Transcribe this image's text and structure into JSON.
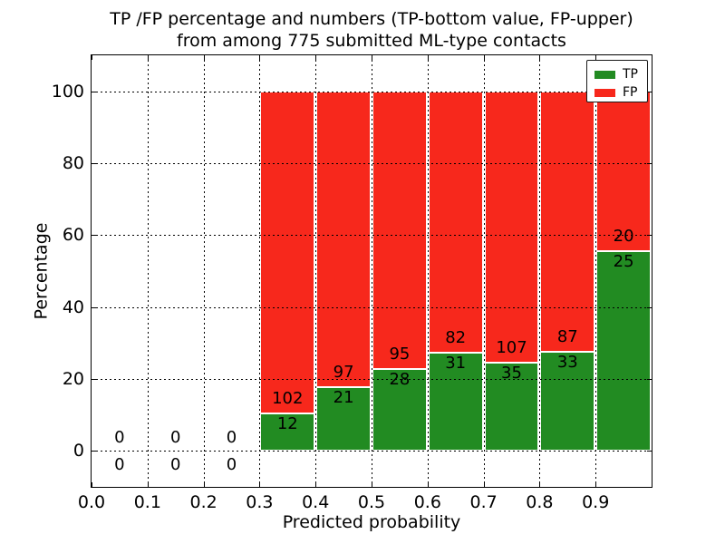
{
  "window": {
    "title_line1": "TP /FP percentage and numbers (TP-bottom value, FP-upper)",
    "title_line2": "from among 775 submitted ML-type contacts"
  },
  "axis": {
    "xlabel": "Predicted probability",
    "ylabel": "Percentage"
  },
  "legend": {
    "items": [
      {
        "label": "TP",
        "color": "#228b22"
      },
      {
        "label": "FP",
        "color": "#f7281c"
      }
    ]
  },
  "chart_data": {
    "type": "bar",
    "stacked": true,
    "normalized_to_percent": true,
    "title": "TP /FP percentage and numbers (TP-bottom value, FP-upper)\nfrom among 775 submitted ML-type contacts",
    "xlabel": "Predicted probability",
    "ylabel": "Percentage",
    "xlim": [
      0.0,
      1.0
    ],
    "ylim": [
      -10,
      110
    ],
    "x_ticks": [
      {
        "value": 0.0,
        "label": "0.0"
      },
      {
        "value": 0.1,
        "label": "0.1"
      },
      {
        "value": 0.2,
        "label": "0.2"
      },
      {
        "value": 0.3,
        "label": "0.3"
      },
      {
        "value": 0.4,
        "label": "0.4"
      },
      {
        "value": 0.5,
        "label": "0.5"
      },
      {
        "value": 0.6,
        "label": "0.6"
      },
      {
        "value": 0.7,
        "label": "0.7"
      },
      {
        "value": 0.8,
        "label": "0.8"
      },
      {
        "value": 0.9,
        "label": "0.9"
      }
    ],
    "y_ticks": [
      0,
      20,
      40,
      60,
      80,
      100
    ],
    "grid": "dotted",
    "legend_position": "upper right",
    "total_submitted": 775,
    "series": [
      {
        "name": "TP",
        "color": "#228b22"
      },
      {
        "name": "FP",
        "color": "#f7281c"
      }
    ],
    "bins": [
      {
        "x0": 0.0,
        "x1": 0.1,
        "tp_count": 0,
        "fp_count": 0,
        "tp_percent": 0,
        "fp_percent": 0
      },
      {
        "x0": 0.1,
        "x1": 0.2,
        "tp_count": 0,
        "fp_count": 0,
        "tp_percent": 0,
        "fp_percent": 0
      },
      {
        "x0": 0.2,
        "x1": 0.3,
        "tp_count": 0,
        "fp_count": 0,
        "tp_percent": 0,
        "fp_percent": 0
      },
      {
        "x0": 0.3,
        "x1": 0.4,
        "tp_count": 12,
        "fp_count": 102,
        "tp_percent": 10.53,
        "fp_percent": 89.47
      },
      {
        "x0": 0.4,
        "x1": 0.5,
        "tp_count": 21,
        "fp_count": 97,
        "tp_percent": 17.8,
        "fp_percent": 82.2
      },
      {
        "x0": 0.5,
        "x1": 0.6,
        "tp_count": 28,
        "fp_count": 95,
        "tp_percent": 22.76,
        "fp_percent": 77.24
      },
      {
        "x0": 0.6,
        "x1": 0.7,
        "tp_count": 31,
        "fp_count": 82,
        "tp_percent": 27.43,
        "fp_percent": 72.57
      },
      {
        "x0": 0.7,
        "x1": 0.8,
        "tp_count": 35,
        "fp_count": 107,
        "tp_percent": 24.65,
        "fp_percent": 75.35
      },
      {
        "x0": 0.8,
        "x1": 0.9,
        "tp_count": 33,
        "fp_count": 87,
        "tp_percent": 27.5,
        "fp_percent": 72.5
      },
      {
        "x0": 0.9,
        "x1": 1.0,
        "tp_count": 25,
        "fp_count": 20,
        "tp_percent": 55.56,
        "fp_percent": 44.44
      }
    ]
  }
}
